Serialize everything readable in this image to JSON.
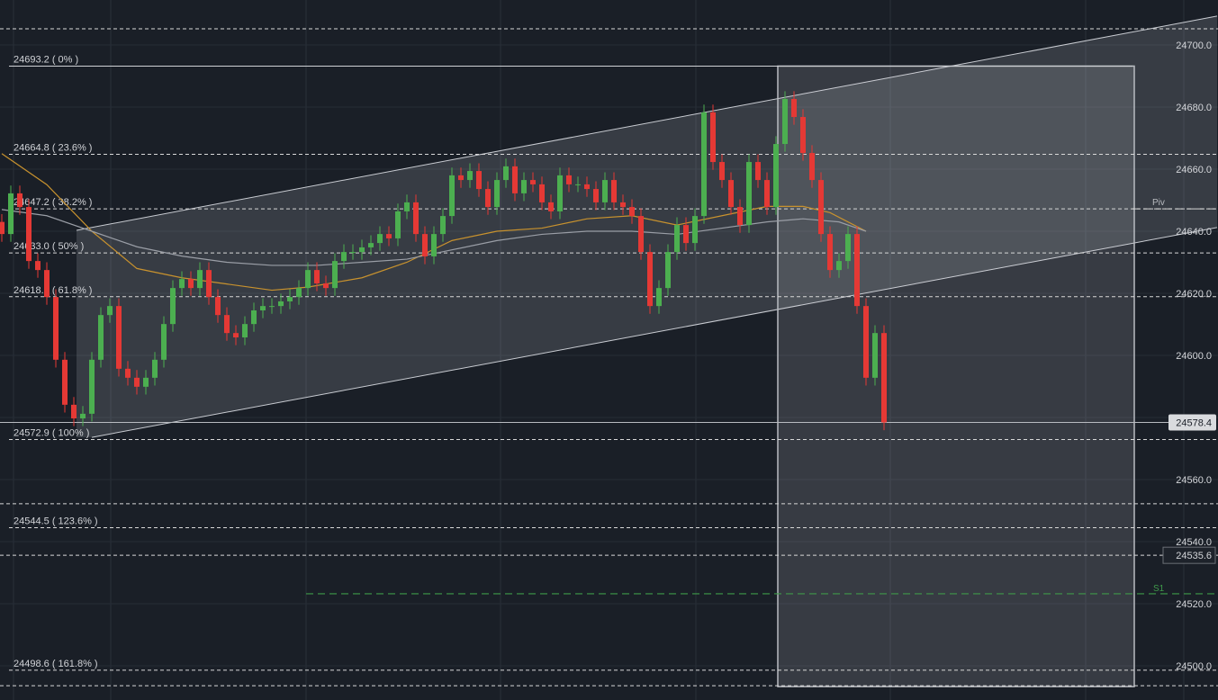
{
  "chart_data": {
    "type": "candlestick",
    "ylim": [
      24493,
      24711
    ],
    "y_ticks": [
      24700.0,
      24680.0,
      24660.0,
      24640.0,
      24620.0,
      24600.0,
      24580.0,
      24560.0,
      24540.0,
      24520.0,
      24500.0
    ],
    "y_tick_labels": [
      "24700.0",
      "24680.0",
      "24660.0",
      "24640.0",
      "24620.0",
      "24600.0",
      "24560.0",
      "24540.0",
      "24520.0",
      "24500.0"
    ],
    "y_tick_values": [
      24700,
      24680,
      24660,
      24640,
      24620,
      24600,
      24560,
      24540,
      24520,
      24500
    ],
    "closes": [
      24639.1,
      24652.2,
      24647.8,
      24630.4,
      24627.5,
      24618.8,
      24598.6,
      24584.1,
      24579.7,
      24581.2,
      24598.6,
      24613.0,
      24615.9,
      24595.7,
      24592.8,
      24589.9,
      24592.8,
      24598.6,
      24610.1,
      24621.7,
      24624.6,
      24621.7,
      24627.5,
      24618.8,
      24613.0,
      24607.2,
      24605.8,
      24610.1,
      24614.5,
      24615.9,
      24615.9,
      24617.4,
      24618.8,
      24621.7,
      24627.5,
      24623.2,
      24621.7,
      24630.4,
      24633.3,
      24633.3,
      24634.8,
      24636.2,
      24639.1,
      24637.7,
      24646.4,
      24649.3,
      24639.1,
      24631.9,
      24639.1,
      24644.9,
      24658.0,
      24656.5,
      24659.4,
      24653.6,
      24647.8,
      24656.5,
      24660.9,
      24652.2,
      24656.5,
      24655.1,
      24649.3,
      24646.4,
      24658.0,
      24655.1,
      24655.1,
      24653.6,
      24649.3,
      24656.5,
      24649.3,
      24647.8,
      24644.9,
      24633.3,
      24615.9,
      24621.7,
      24633.3,
      24642.0,
      24636.2,
      24644.9,
      24678.3,
      24662.3,
      24656.5,
      24647.8,
      24642.0,
      24662.3,
      24656.5,
      24647.8,
      24668.1,
      24682.6,
      24676.8,
      24665.2,
      24656.5,
      24639.1,
      24627.5,
      24630.4,
      24639.1,
      24615.9,
      24592.8,
      24607.2,
      24578.4
    ],
    "first_open": 24643.0,
    "moving_averages": [
      {
        "color": "#c8922e",
        "points": [
          [
            0,
            24665
          ],
          [
            5,
            24655
          ],
          [
            10,
            24640
          ],
          [
            15,
            24628
          ],
          [
            20,
            24625
          ],
          [
            25,
            24623
          ],
          [
            30,
            24621
          ],
          [
            34,
            24622
          ],
          [
            40,
            24625
          ],
          [
            45,
            24630
          ],
          [
            50,
            24637
          ],
          [
            55,
            24640
          ],
          [
            60,
            24641
          ],
          [
            65,
            24644
          ],
          [
            70,
            24645
          ],
          [
            75,
            24642
          ],
          [
            80,
            24645
          ],
          [
            85,
            24648
          ],
          [
            89,
            24648
          ],
          [
            92,
            24646
          ],
          [
            96,
            24640
          ]
        ]
      },
      {
        "color": "#9a9ea6",
        "points": [
          [
            0,
            24647
          ],
          [
            5,
            24645
          ],
          [
            10,
            24640
          ],
          [
            15,
            24635
          ],
          [
            20,
            24632
          ],
          [
            25,
            24630
          ],
          [
            30,
            24629
          ],
          [
            35,
            24629
          ],
          [
            40,
            24630
          ],
          [
            45,
            24631
          ],
          [
            50,
            24634
          ],
          [
            55,
            24637
          ],
          [
            60,
            24639
          ],
          [
            65,
            24640
          ],
          [
            70,
            24640
          ],
          [
            75,
            24639
          ],
          [
            80,
            24641
          ],
          [
            85,
            24643
          ],
          [
            89,
            24644
          ],
          [
            93,
            24643
          ],
          [
            96,
            24640
          ]
        ]
      }
    ],
    "fib_levels": [
      {
        "price": 24693.2,
        "label": "24693.2 ( 0% )",
        "style": "solid"
      },
      {
        "price": 24664.8,
        "label": "24664.8 ( 23.6% )",
        "style": "dashed"
      },
      {
        "price": 24647.2,
        "label": "24647.2 ( 38.2% )",
        "style": "dashed"
      },
      {
        "price": 24633.0,
        "label": "24633.0 ( 50% )",
        "style": "dashed"
      },
      {
        "price": 24618.9,
        "label": "24618.9 ( 61.8% )",
        "style": "dashed"
      },
      {
        "price": 24572.9,
        "label": "24572.9 ( 100% )",
        "style": "dashed"
      },
      {
        "price": 24544.5,
        "label": "24544.5 ( 123.6% )",
        "style": "dashed"
      },
      {
        "price": 24498.6,
        "label": "24498.6 ( 161.8% )",
        "style": "dashed"
      }
    ],
    "extra_dashed_levels": [
      24705.2,
      24552.2,
      24535.6,
      24493.6
    ],
    "pivot": {
      "label": "Piv",
      "price": 24647.2
    },
    "support": {
      "label": "S1",
      "price": 24523.2,
      "color": "#3f9a4a"
    },
    "current_price": {
      "value": 24578.4,
      "label": "24578.4"
    },
    "marker_price": {
      "value": 24535.6,
      "label": "24535.6"
    },
    "channel": {
      "upper": [
        [
          8.3,
          24640.3
        ],
        [
          135,
          24709.3
        ]
      ],
      "lower": [
        [
          10,
          24573.6
        ],
        [
          135,
          24641.2
        ]
      ]
    },
    "rectangle": {
      "from_index": 86.2,
      "to_index": 125.8,
      "top": 24693.2,
      "bottom": 24493.3
    },
    "colors": {
      "up": "#4caf50",
      "down": "#e53935",
      "background": "#1a1f27"
    }
  }
}
